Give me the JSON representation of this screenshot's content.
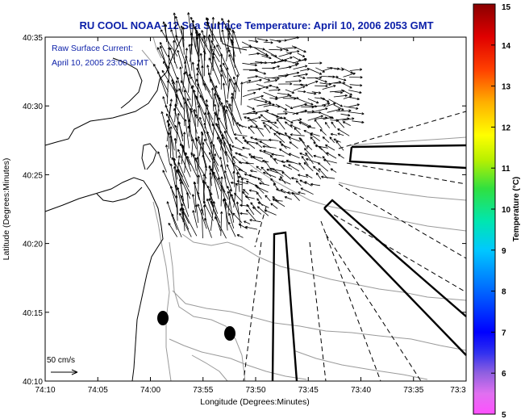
{
  "chart_data": {
    "type": "map",
    "title": "RU COOL  NOAA–12  Sea Surface Temperature:  April 10, 2006 2053 GMT",
    "annotation_lines": [
      "Raw Surface Current:",
      "April 10, 2005 23:00 GMT"
    ],
    "xlabel": "Longitude (Degrees:Minutes)",
    "ylabel": "Latitude (Degrees:Minutes)",
    "x_ticks": [
      "74:10",
      "74:05",
      "74:00",
      "73:55",
      "73:50",
      "73:45",
      "73:40",
      "73:35",
      "73:3"
    ],
    "y_ticks": [
      "40:35",
      "40:30",
      "40:25",
      "40:20",
      "40:15",
      "40:10"
    ],
    "xlim": [
      "74:10 W",
      "73:30 W"
    ],
    "ylim": [
      "40:10 N",
      "40:35 N"
    ],
    "scale_label": "50 cm/s",
    "colorbar": {
      "label": "Temperature (°C)",
      "min": 5,
      "max": 15,
      "ticks": [
        5,
        6,
        7,
        8,
        9,
        10,
        11,
        12,
        13,
        14,
        15
      ]
    },
    "grid": false
  },
  "colors": {
    "title": "#0a1ea8",
    "annotation": "#0a1ea8",
    "coastline": "#000000",
    "bathymetry": "#9a9a9a",
    "vectors": "#000000"
  }
}
